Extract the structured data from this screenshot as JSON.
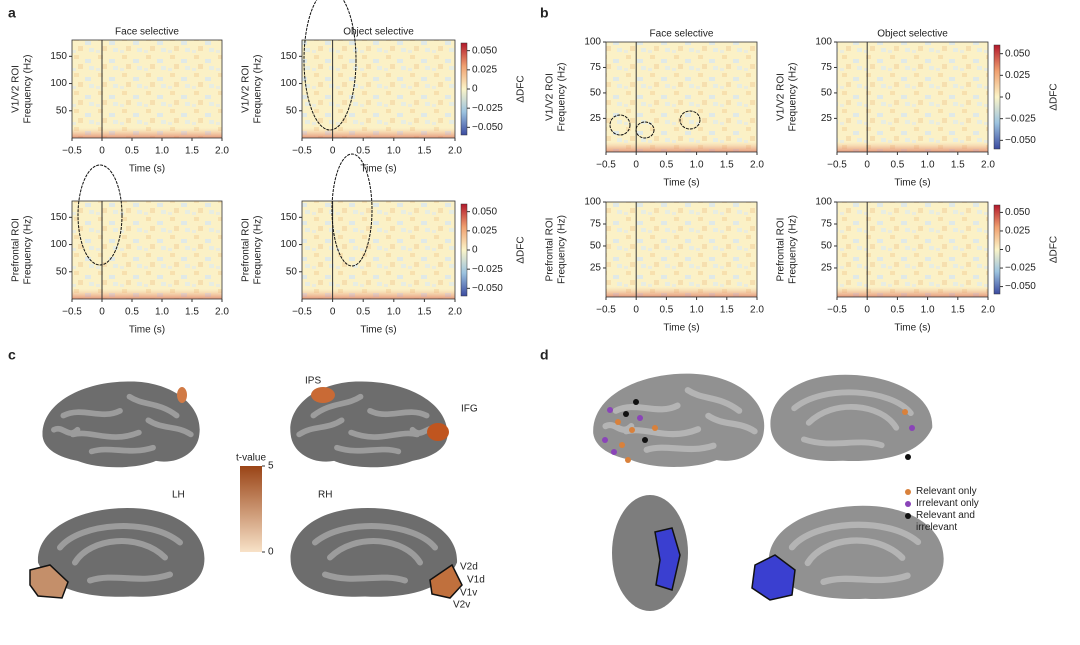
{
  "panel_labels": [
    "a",
    "b",
    "c",
    "d"
  ],
  "chart_data": [
    {
      "type": "heatmap",
      "title": "Face selective",
      "ylabel": [
        "V1/V2 ROI",
        "Frequency (Hz)"
      ],
      "xlabel": "Time (s)",
      "xlim": [
        -0.5,
        2
      ],
      "xticks": [
        {
          "value": -0.5,
          "label": "−0.5"
        },
        0,
        0.5,
        {
          "value": 1,
          "label": "1.0"
        },
        1.5,
        {
          "value": 2,
          "label": "2.0"
        }
      ],
      "ylim": [
        0,
        180
      ],
      "yticks": [
        50,
        100,
        150
      ],
      "vline": 0
    },
    {
      "type": "heatmap",
      "title": "Object selective",
      "ylabel": [
        "V1/V2 ROI",
        "Frequency (Hz)"
      ],
      "xlabel": "Time (s)",
      "xlim": [
        -0.5,
        2
      ],
      "xticks": [
        {
          "value": -0.5,
          "label": "−0.5"
        },
        0,
        0.5,
        {
          "value": 1,
          "label": "1.0"
        },
        1.5,
        {
          "value": 2,
          "label": "2.0"
        }
      ],
      "ylim": [
        0,
        180
      ],
      "yticks": [
        50,
        100,
        150
      ],
      "vline": 0,
      "colorbar": {
        "label": "ΔDFC",
        "lim": [
          -0.06,
          0.06
        ],
        "ticks": [
          {
            "value": 0.05,
            "label": "0.050"
          },
          {
            "value": 0.025,
            "label": "0.025"
          },
          0,
          {
            "value": -0.025,
            "label": "−0.025"
          },
          {
            "value": -0.05,
            "label": "−0.050"
          }
        ]
      }
    },
    {
      "type": "heatmap",
      "ylabel": [
        "Prefrontal ROI",
        "Frequency (Hz)"
      ],
      "xlabel": "Time (s)",
      "xlim": [
        -0.5,
        2
      ],
      "xticks": [
        {
          "value": -0.5,
          "label": "−0.5"
        },
        0,
        0.5,
        {
          "value": 1,
          "label": "1.0"
        },
        1.5,
        {
          "value": 2,
          "label": "2.0"
        }
      ],
      "ylim": [
        0,
        180
      ],
      "yticks": [
        50,
        100,
        150
      ],
      "vline": 0
    },
    {
      "type": "heatmap",
      "ylabel": [
        "Prefrontal ROI",
        "Frequency (Hz)"
      ],
      "xlabel": "Time (s)",
      "xlim": [
        -0.5,
        2
      ],
      "xticks": [
        {
          "value": -0.5,
          "label": "−0.5"
        },
        0,
        0.5,
        {
          "value": 1,
          "label": "1.0"
        },
        1.5,
        {
          "value": 2,
          "label": "2.0"
        }
      ],
      "ylim": [
        0,
        180
      ],
      "yticks": [
        50,
        100,
        150
      ],
      "vline": 0,
      "colorbar": {
        "label": "ΔDFC",
        "lim": [
          -0.06,
          0.06
        ],
        "ticks": [
          {
            "value": 0.05,
            "label": "0.050"
          },
          {
            "value": 0.025,
            "label": "0.025"
          },
          0,
          {
            "value": -0.025,
            "label": "−0.025"
          },
          {
            "value": -0.05,
            "label": "−0.050"
          }
        ]
      }
    },
    {
      "type": "heatmap",
      "title": "Face selective",
      "ylabel": [
        "V1/V2 ROI",
        "Frequency (Hz)"
      ],
      "xlabel": "Time (s)",
      "xlim": [
        -0.5,
        2
      ],
      "xticks": [
        {
          "value": -0.5,
          "label": "−0.5"
        },
        0,
        0.5,
        {
          "value": 1,
          "label": "1.0"
        },
        1.5,
        {
          "value": 2,
          "label": "2.0"
        }
      ],
      "ylim": [
        -8,
        100
      ],
      "yticks": [
        25,
        50,
        75,
        100
      ],
      "vline": 0
    },
    {
      "type": "heatmap",
      "title": "Object selective",
      "ylabel": [
        "V1/V2 ROI",
        "Frequency (Hz)"
      ],
      "xlabel": "Time (s)",
      "xlim": [
        -0.5,
        2
      ],
      "xticks": [
        {
          "value": -0.5,
          "label": "−0.5"
        },
        0,
        0.5,
        {
          "value": 1,
          "label": "1.0"
        },
        1.5,
        {
          "value": 2,
          "label": "2.0"
        }
      ],
      "ylim": [
        -8,
        100
      ],
      "yticks": [
        25,
        50,
        75,
        100
      ],
      "vline": 0,
      "colorbar": {
        "label": "ΔDFC",
        "lim": [
          -0.06,
          0.06
        ],
        "ticks": [
          {
            "value": 0.05,
            "label": "0.050"
          },
          {
            "value": 0.025,
            "label": "0.025"
          },
          0,
          {
            "value": -0.025,
            "label": "−0.025"
          },
          {
            "value": -0.05,
            "label": "−0.050"
          }
        ]
      }
    },
    {
      "type": "heatmap",
      "ylabel": [
        "Prefrontal ROI",
        "Frequency (Hz)"
      ],
      "xlabel": "Time (s)",
      "xlim": [
        -0.5,
        2
      ],
      "xticks": [
        {
          "value": -0.5,
          "label": "−0.5"
        },
        0,
        0.5,
        {
          "value": 1,
          "label": "1.0"
        },
        1.5,
        {
          "value": 2,
          "label": "2.0"
        }
      ],
      "ylim": [
        -8,
        100
      ],
      "yticks": [
        25,
        50,
        75,
        100
      ],
      "vline": 0
    },
    {
      "type": "heatmap",
      "ylabel": [
        "Prefrontal ROI",
        "Frequency (Hz)"
      ],
      "xlabel": "Time (s)",
      "xlim": [
        -0.5,
        2
      ],
      "xticks": [
        {
          "value": -0.5,
          "label": "−0.5"
        },
        0,
        0.5,
        {
          "value": 1,
          "label": "1.0"
        },
        1.5,
        {
          "value": 2,
          "label": "2.0"
        }
      ],
      "ylim": [
        -8,
        100
      ],
      "yticks": [
        25,
        50,
        75,
        100
      ],
      "vline": 0,
      "colorbar": {
        "label": "ΔDFC",
        "lim": [
          -0.06,
          0.06
        ],
        "ticks": [
          {
            "value": 0.05,
            "label": "0.050"
          },
          {
            "value": 0.025,
            "label": "0.025"
          },
          0,
          {
            "value": -0.025,
            "label": "−0.025"
          },
          {
            "value": -0.05,
            "label": "−0.050"
          }
        ]
      }
    }
  ],
  "panel_c": {
    "regions": [
      "IPS",
      "IFG"
    ],
    "hemispheres": [
      "LH",
      "RH"
    ],
    "areas": [
      "V2d",
      "V1d",
      "V1v",
      "V2v"
    ],
    "colorbar": {
      "label": "t-value",
      "lim": [
        0,
        5
      ],
      "ticks": [
        5,
        0
      ]
    }
  },
  "panel_d": {
    "legend": [
      {
        "name": "Relevant only",
        "color": "#d9813b"
      },
      {
        "name": "Irrelevant only",
        "color": "#8a44b8"
      },
      {
        "name": "Relevant and irrelevant",
        "color": "#111111"
      }
    ]
  }
}
